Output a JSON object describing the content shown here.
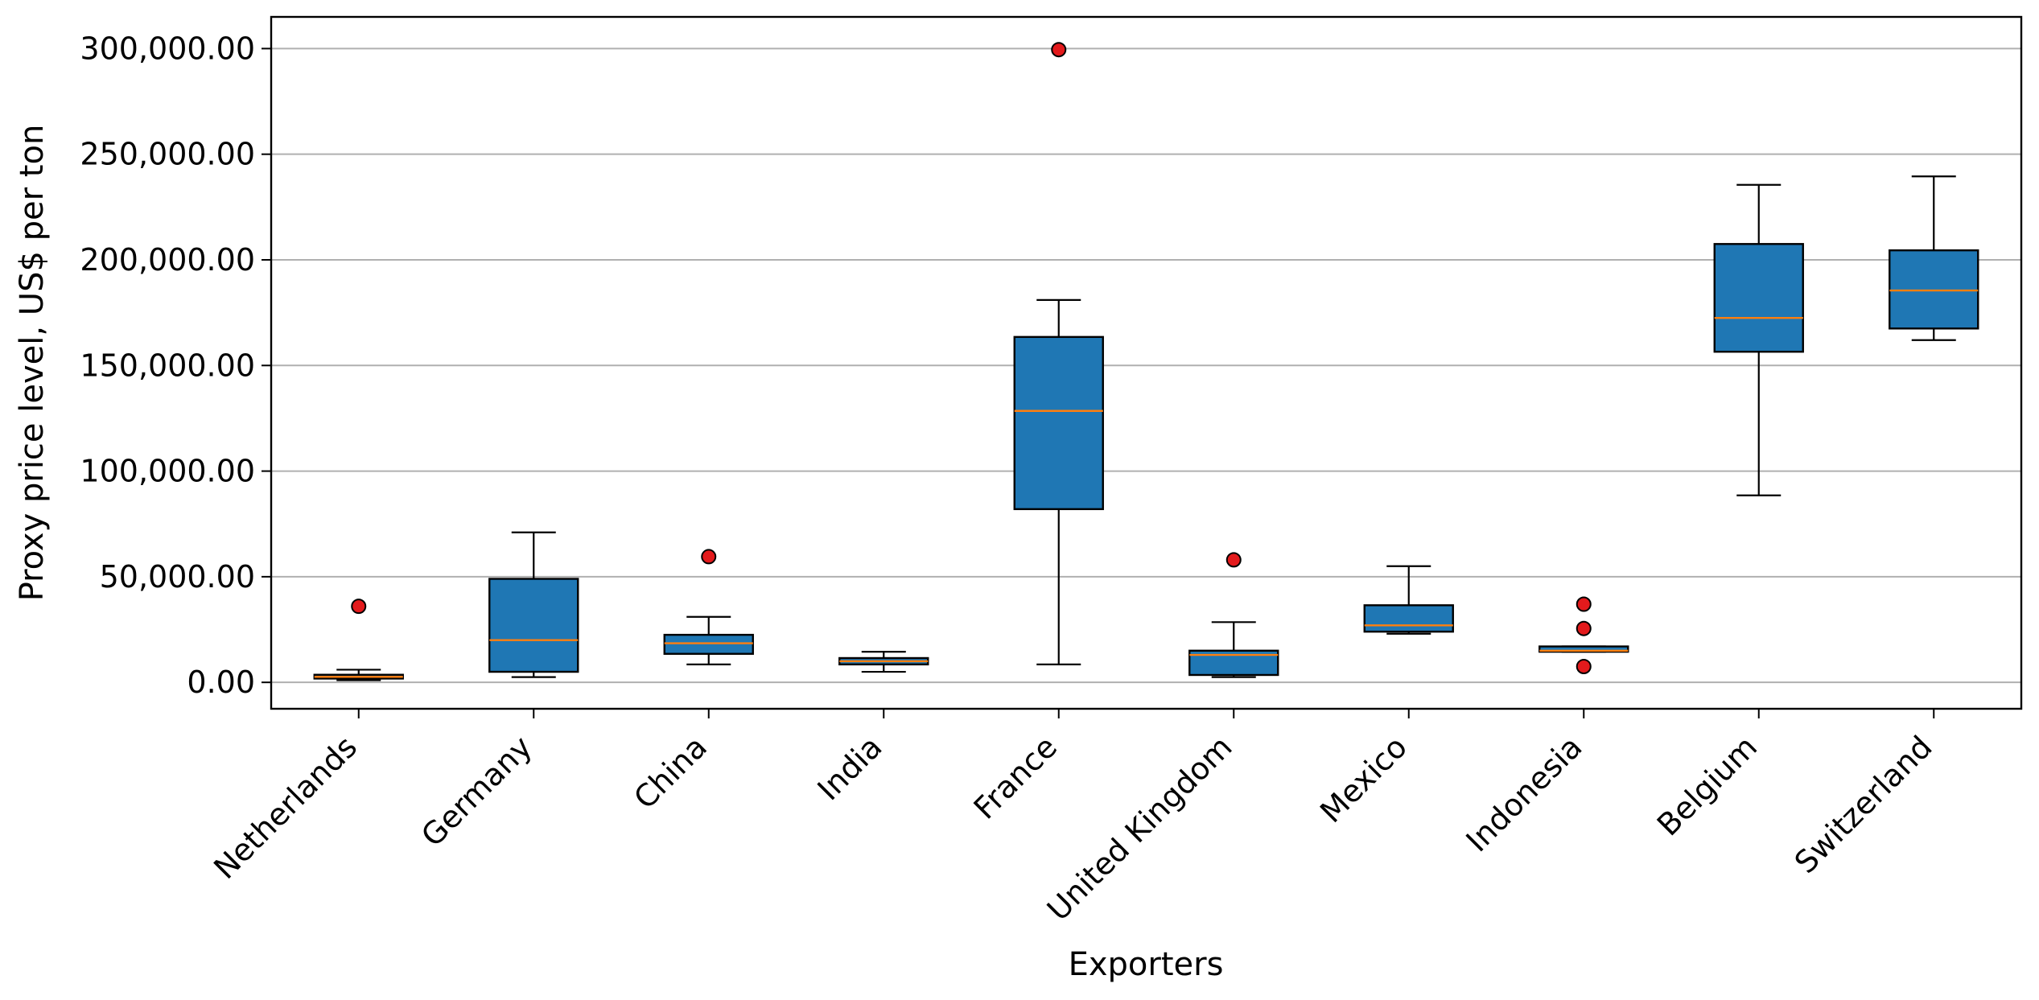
{
  "chart_data": {
    "type": "box",
    "xlabel": "Exporters",
    "ylabel": "Proxy price level, US$ per ton",
    "ylim": [
      -12500,
      315000
    ],
    "yticks": [
      0,
      50000,
      100000,
      150000,
      200000,
      250000,
      300000
    ],
    "ytick_labels": [
      "0.00",
      "50,000.00",
      "100,000.00",
      "150,000.00",
      "200,000.00",
      "250,000.00",
      "300,000.00"
    ],
    "grid": "horizontal",
    "colors": {
      "box_fill": "#1f77b4",
      "median": "#ff7f0e",
      "outlier": "#e31a1c",
      "grid": "#b0b0b0"
    },
    "categories": [
      "Netherlands",
      "Germany",
      "China",
      "India",
      "France",
      "United Kingdom",
      "Mexico",
      "Indonesia",
      "Belgium",
      "Switzerland"
    ],
    "boxes": [
      {
        "min": 1000,
        "q1": 1800,
        "median": 2600,
        "q3": 3600,
        "max": 6000,
        "outliers": [
          36000
        ]
      },
      {
        "min": 2500,
        "q1": 5000,
        "median": 20000,
        "q3": 49000,
        "max": 71000,
        "outliers": []
      },
      {
        "min": 8500,
        "q1": 13500,
        "median": 18500,
        "q3": 22500,
        "max": 31000,
        "outliers": [
          59500
        ]
      },
      {
        "min": 5000,
        "q1": 8500,
        "median": 10000,
        "q3": 11500,
        "max": 14500,
        "outliers": []
      },
      {
        "min": 8500,
        "q1": 82000,
        "median": 128500,
        "q3": 163500,
        "max": 181000,
        "outliers": [
          299500
        ]
      },
      {
        "min": 2500,
        "q1": 3500,
        "median": 13000,
        "q3": 15000,
        "max": 28500,
        "outliers": [
          58000
        ]
      },
      {
        "min": 23000,
        "q1": 24000,
        "median": 27000,
        "q3": 36500,
        "max": 55000,
        "outliers": []
      },
      {
        "min": 14500,
        "q1": 14500,
        "median": 15000,
        "q3": 17000,
        "max": 17000,
        "outliers": [
          37000,
          25500,
          7500
        ]
      },
      {
        "min": 88500,
        "q1": 156500,
        "median": 172500,
        "q3": 207500,
        "max": 235500,
        "outliers": []
      },
      {
        "min": 162000,
        "q1": 167500,
        "median": 185500,
        "q3": 204500,
        "max": 239500,
        "outliers": []
      }
    ]
  }
}
